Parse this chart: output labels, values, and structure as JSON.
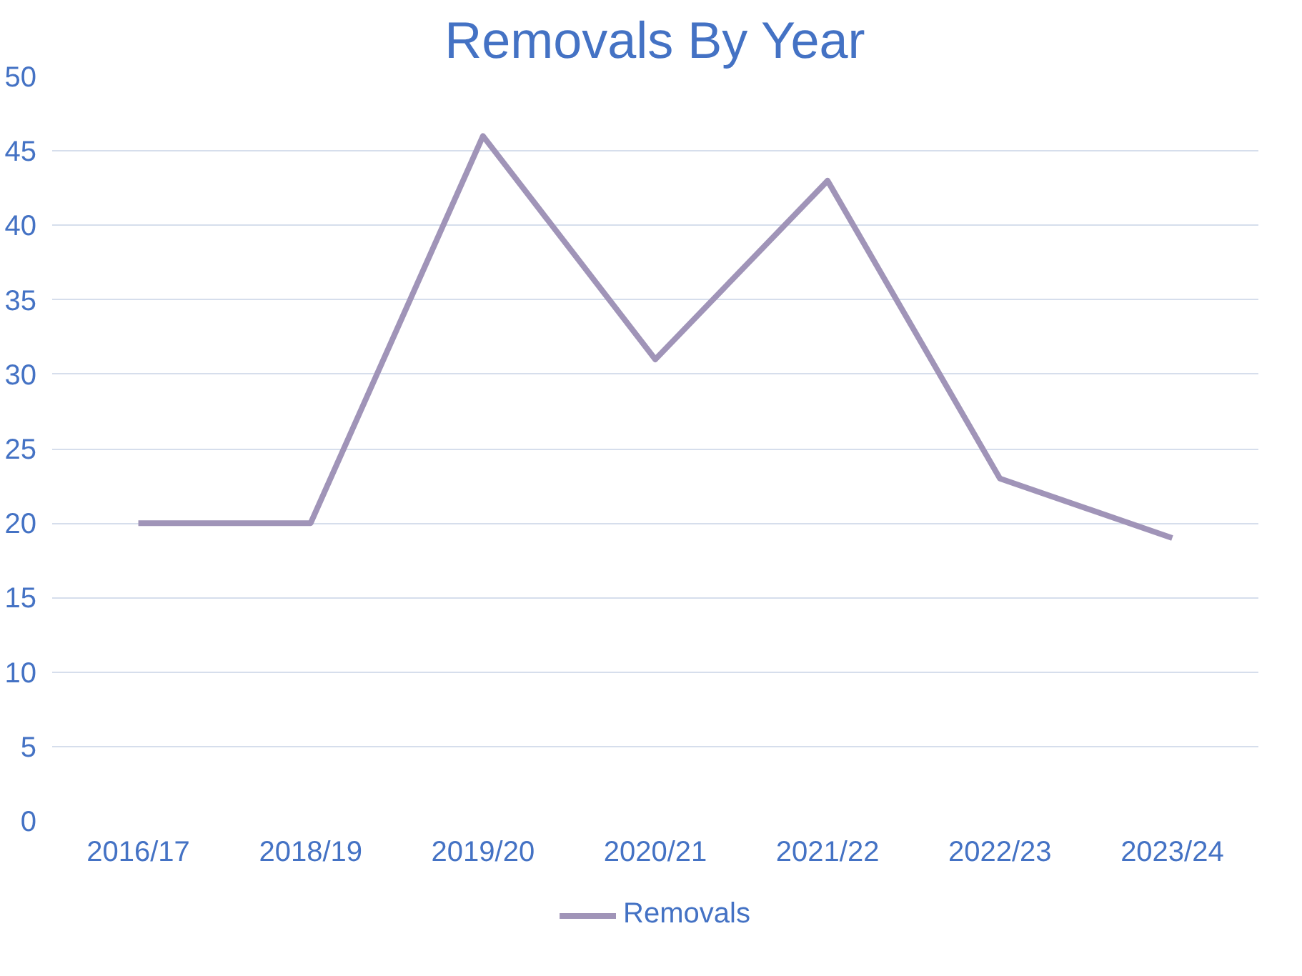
{
  "chart_data": {
    "type": "line",
    "title": "Removals By Year",
    "categories": [
      "2016/17",
      "2018/19",
      "2019/20",
      "2020/21",
      "2021/22",
      "2022/23",
      "2023/24"
    ],
    "series": [
      {
        "name": "Removals",
        "color": "#a094b8",
        "values": [
          20,
          20,
          46,
          31,
          43,
          23,
          19
        ]
      }
    ],
    "ylim": [
      0,
      50
    ],
    "yticks": [
      0,
      5,
      10,
      15,
      20,
      25,
      30,
      35,
      40,
      45,
      50
    ],
    "grid": "y",
    "legend": "bottom",
    "marker": "none",
    "line_style": "solid"
  }
}
